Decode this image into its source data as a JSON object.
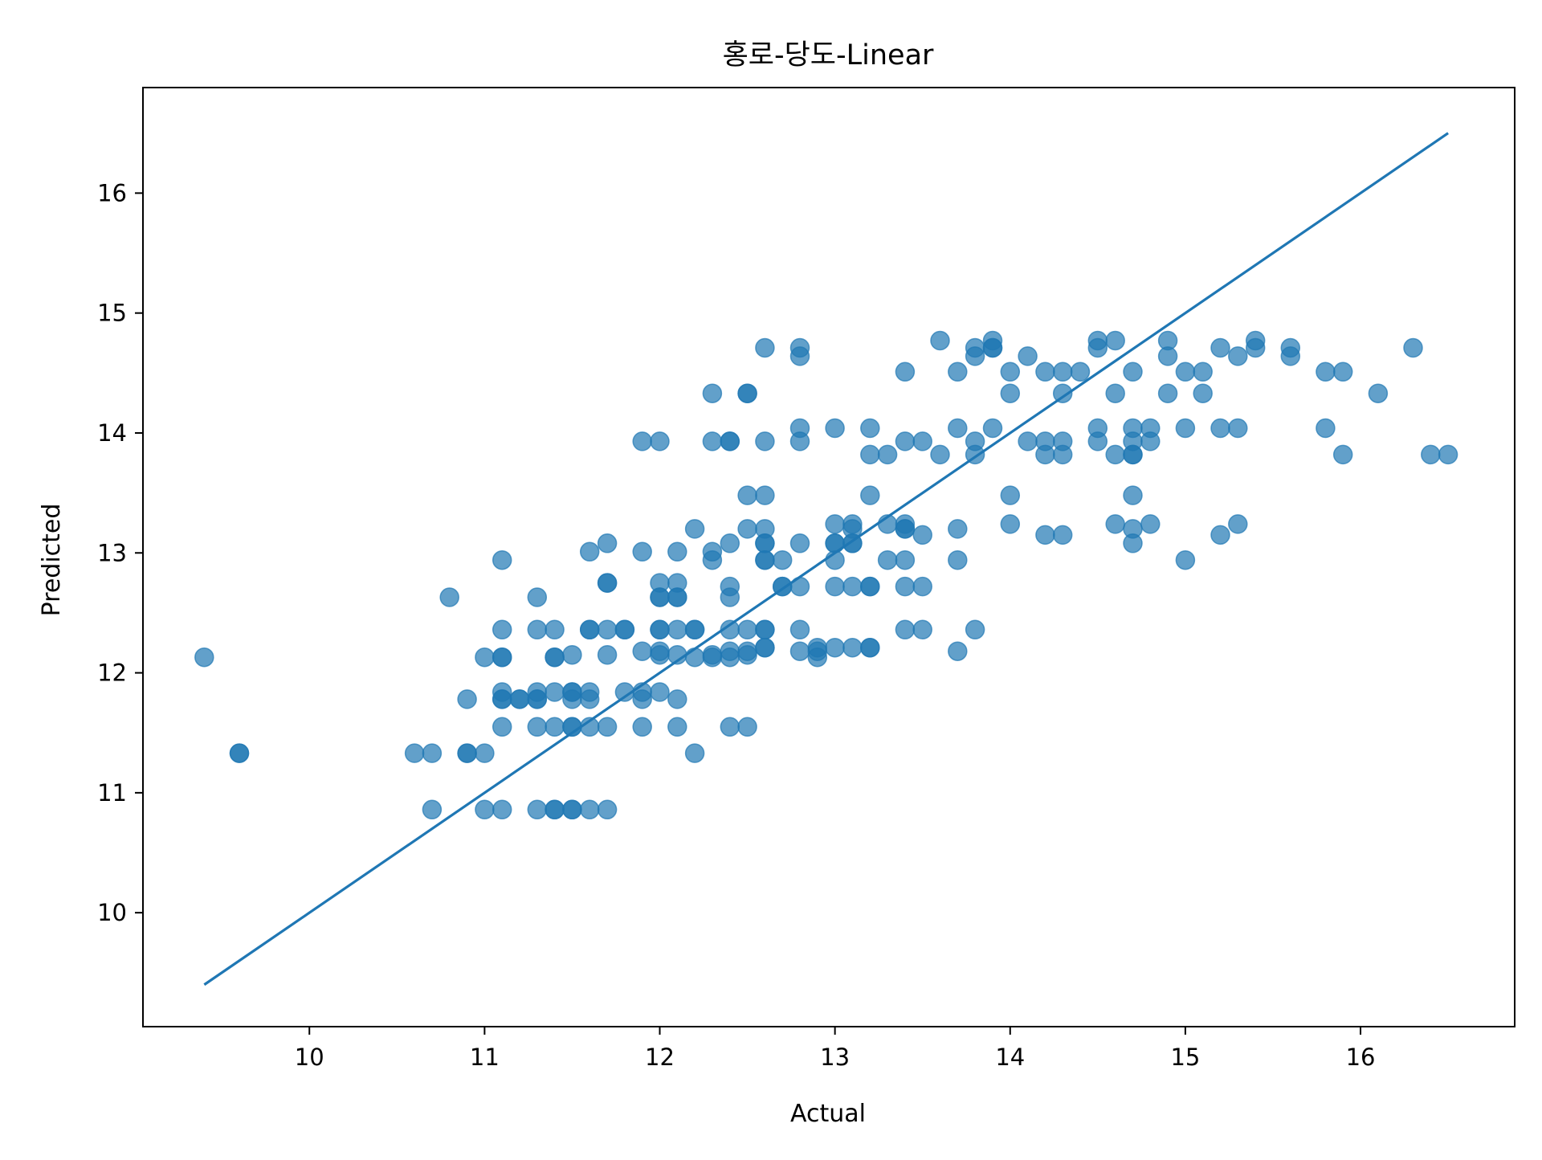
{
  "chart_data": {
    "type": "scatter",
    "title": "홍로-당도-Linear",
    "xlabel": "Actual",
    "ylabel": "Predicted",
    "xlim": [
      9.05,
      16.88
    ],
    "ylim": [
      9.05,
      16.88
    ],
    "xticks": [
      10,
      11,
      12,
      13,
      14,
      15,
      16
    ],
    "yticks": [
      10,
      11,
      12,
      13,
      14,
      15,
      16
    ],
    "xtick_labels": [
      "10",
      "11",
      "12",
      "13",
      "14",
      "15",
      "16"
    ],
    "ytick_labels": [
      "10",
      "11",
      "12",
      "13",
      "14",
      "15",
      "16"
    ],
    "grid": false,
    "point_color": "#1f77b4",
    "point_alpha": 0.7,
    "line_color": "#1f77b4",
    "reference_line": {
      "x": [
        9.4,
        16.5
      ],
      "y": [
        9.4,
        16.5
      ]
    },
    "points": [
      [
        9.4,
        12.13
      ],
      [
        9.6,
        11.33
      ],
      [
        9.6,
        11.33
      ],
      [
        10.6,
        11.33
      ],
      [
        10.7,
        11.33
      ],
      [
        10.7,
        10.86
      ],
      [
        10.8,
        12.63
      ],
      [
        10.9,
        11.78
      ],
      [
        10.9,
        11.33
      ],
      [
        10.9,
        11.33
      ],
      [
        11.0,
        12.13
      ],
      [
        11.0,
        11.33
      ],
      [
        11.0,
        10.86
      ],
      [
        11.1,
        12.94
      ],
      [
        11.1,
        12.36
      ],
      [
        11.1,
        12.13
      ],
      [
        11.1,
        12.13
      ],
      [
        11.1,
        11.84
      ],
      [
        11.1,
        11.78
      ],
      [
        11.1,
        11.78
      ],
      [
        11.1,
        11.55
      ],
      [
        11.1,
        10.86
      ],
      [
        11.2,
        11.78
      ],
      [
        11.2,
        11.78
      ],
      [
        11.3,
        12.63
      ],
      [
        11.3,
        12.36
      ],
      [
        11.3,
        11.84
      ],
      [
        11.3,
        11.78
      ],
      [
        11.3,
        11.78
      ],
      [
        11.3,
        11.55
      ],
      [
        11.3,
        10.86
      ],
      [
        11.4,
        12.36
      ],
      [
        11.4,
        12.13
      ],
      [
        11.4,
        12.13
      ],
      [
        11.4,
        11.84
      ],
      [
        11.4,
        11.55
      ],
      [
        11.4,
        10.86
      ],
      [
        11.4,
        10.86
      ],
      [
        11.5,
        12.15
      ],
      [
        11.5,
        11.84
      ],
      [
        11.5,
        11.84
      ],
      [
        11.5,
        11.78
      ],
      [
        11.5,
        11.55
      ],
      [
        11.5,
        11.55
      ],
      [
        11.5,
        10.86
      ],
      [
        11.5,
        10.86
      ],
      [
        11.6,
        13.01
      ],
      [
        11.6,
        12.36
      ],
      [
        11.6,
        12.36
      ],
      [
        11.6,
        11.84
      ],
      [
        11.6,
        11.78
      ],
      [
        11.6,
        11.55
      ],
      [
        11.6,
        10.86
      ],
      [
        11.7,
        13.08
      ],
      [
        11.7,
        12.75
      ],
      [
        11.7,
        12.75
      ],
      [
        11.7,
        12.36
      ],
      [
        11.7,
        12.15
      ],
      [
        11.7,
        11.55
      ],
      [
        11.7,
        10.86
      ],
      [
        11.8,
        12.36
      ],
      [
        11.8,
        12.36
      ],
      [
        11.8,
        11.84
      ],
      [
        11.9,
        13.93
      ],
      [
        11.9,
        13.01
      ],
      [
        11.9,
        12.18
      ],
      [
        11.9,
        11.84
      ],
      [
        11.9,
        11.78
      ],
      [
        11.9,
        11.55
      ],
      [
        12.0,
        13.93
      ],
      [
        12.0,
        12.75
      ],
      [
        12.0,
        12.63
      ],
      [
        12.0,
        12.63
      ],
      [
        12.0,
        12.36
      ],
      [
        12.0,
        12.36
      ],
      [
        12.0,
        12.18
      ],
      [
        12.0,
        12.15
      ],
      [
        12.0,
        11.84
      ],
      [
        12.1,
        13.01
      ],
      [
        12.1,
        12.75
      ],
      [
        12.1,
        12.63
      ],
      [
        12.1,
        12.63
      ],
      [
        12.1,
        12.36
      ],
      [
        12.1,
        12.15
      ],
      [
        12.1,
        11.78
      ],
      [
        12.1,
        11.55
      ],
      [
        12.2,
        13.2
      ],
      [
        12.2,
        12.36
      ],
      [
        12.2,
        12.36
      ],
      [
        12.2,
        12.13
      ],
      [
        12.2,
        11.33
      ],
      [
        12.3,
        14.33
      ],
      [
        12.3,
        13.93
      ],
      [
        12.3,
        13.01
      ],
      [
        12.3,
        12.94
      ],
      [
        12.3,
        12.15
      ],
      [
        12.3,
        12.13
      ],
      [
        12.4,
        13.93
      ],
      [
        12.4,
        13.93
      ],
      [
        12.4,
        13.08
      ],
      [
        12.4,
        12.72
      ],
      [
        12.4,
        12.63
      ],
      [
        12.4,
        12.36
      ],
      [
        12.4,
        12.18
      ],
      [
        12.4,
        12.13
      ],
      [
        12.4,
        11.55
      ],
      [
        12.5,
        14.33
      ],
      [
        12.5,
        14.33
      ],
      [
        12.5,
        13.48
      ],
      [
        12.5,
        13.2
      ],
      [
        12.5,
        12.36
      ],
      [
        12.5,
        12.18
      ],
      [
        12.5,
        12.15
      ],
      [
        12.5,
        11.55
      ],
      [
        12.6,
        14.71
      ],
      [
        12.6,
        13.93
      ],
      [
        12.6,
        13.48
      ],
      [
        12.6,
        13.2
      ],
      [
        12.6,
        13.08
      ],
      [
        12.6,
        13.08
      ],
      [
        12.6,
        12.94
      ],
      [
        12.6,
        12.94
      ],
      [
        12.6,
        12.36
      ],
      [
        12.6,
        12.36
      ],
      [
        12.6,
        12.21
      ],
      [
        12.6,
        12.21
      ],
      [
        12.7,
        12.94
      ],
      [
        12.7,
        12.72
      ],
      [
        12.7,
        12.72
      ],
      [
        12.8,
        14.71
      ],
      [
        12.8,
        14.64
      ],
      [
        12.8,
        14.04
      ],
      [
        12.8,
        13.93
      ],
      [
        12.8,
        13.08
      ],
      [
        12.8,
        12.72
      ],
      [
        12.8,
        12.36
      ],
      [
        12.8,
        12.18
      ],
      [
        12.9,
        12.21
      ],
      [
        12.9,
        12.18
      ],
      [
        12.9,
        12.13
      ],
      [
        13.0,
        14.04
      ],
      [
        13.0,
        13.24
      ],
      [
        13.0,
        13.08
      ],
      [
        13.0,
        13.08
      ],
      [
        13.0,
        12.94
      ],
      [
        13.0,
        12.72
      ],
      [
        13.0,
        12.21
      ],
      [
        13.1,
        13.24
      ],
      [
        13.1,
        13.2
      ],
      [
        13.1,
        13.08
      ],
      [
        13.1,
        13.08
      ],
      [
        13.1,
        12.72
      ],
      [
        13.1,
        12.21
      ],
      [
        13.2,
        14.04
      ],
      [
        13.2,
        13.82
      ],
      [
        13.2,
        13.48
      ],
      [
        13.2,
        12.72
      ],
      [
        13.2,
        12.72
      ],
      [
        13.2,
        12.21
      ],
      [
        13.2,
        12.21
      ],
      [
        13.3,
        13.82
      ],
      [
        13.3,
        13.24
      ],
      [
        13.3,
        12.94
      ],
      [
        13.4,
        14.51
      ],
      [
        13.4,
        13.93
      ],
      [
        13.4,
        13.24
      ],
      [
        13.4,
        13.2
      ],
      [
        13.4,
        13.2
      ],
      [
        13.4,
        12.94
      ],
      [
        13.4,
        12.72
      ],
      [
        13.4,
        12.36
      ],
      [
        13.5,
        13.93
      ],
      [
        13.5,
        13.15
      ],
      [
        13.5,
        12.72
      ],
      [
        13.5,
        12.36
      ],
      [
        13.6,
        14.77
      ],
      [
        13.6,
        13.82
      ],
      [
        13.7,
        14.51
      ],
      [
        13.7,
        14.04
      ],
      [
        13.7,
        13.2
      ],
      [
        13.7,
        12.94
      ],
      [
        13.7,
        12.18
      ],
      [
        13.8,
        14.71
      ],
      [
        13.8,
        14.64
      ],
      [
        13.8,
        13.93
      ],
      [
        13.8,
        13.82
      ],
      [
        13.8,
        12.36
      ],
      [
        13.9,
        14.77
      ],
      [
        13.9,
        14.71
      ],
      [
        13.9,
        14.71
      ],
      [
        13.9,
        14.04
      ],
      [
        14.0,
        14.51
      ],
      [
        14.0,
        14.33
      ],
      [
        14.0,
        13.48
      ],
      [
        14.0,
        13.24
      ],
      [
        14.1,
        14.64
      ],
      [
        14.1,
        13.93
      ],
      [
        14.2,
        14.51
      ],
      [
        14.2,
        13.93
      ],
      [
        14.2,
        13.82
      ],
      [
        14.2,
        13.15
      ],
      [
        14.3,
        14.51
      ],
      [
        14.3,
        14.33
      ],
      [
        14.3,
        13.93
      ],
      [
        14.3,
        13.82
      ],
      [
        14.3,
        13.15
      ],
      [
        14.4,
        14.51
      ],
      [
        14.5,
        14.77
      ],
      [
        14.5,
        14.71
      ],
      [
        14.5,
        14.04
      ],
      [
        14.5,
        13.93
      ],
      [
        14.6,
        14.77
      ],
      [
        14.6,
        14.33
      ],
      [
        14.6,
        13.82
      ],
      [
        14.6,
        13.24
      ],
      [
        14.7,
        14.51
      ],
      [
        14.7,
        14.04
      ],
      [
        14.7,
        13.93
      ],
      [
        14.7,
        13.82
      ],
      [
        14.7,
        13.82
      ],
      [
        14.7,
        13.48
      ],
      [
        14.7,
        13.2
      ],
      [
        14.7,
        13.08
      ],
      [
        14.8,
        14.04
      ],
      [
        14.8,
        13.93
      ],
      [
        14.8,
        13.24
      ],
      [
        14.9,
        14.77
      ],
      [
        14.9,
        14.64
      ],
      [
        14.9,
        14.33
      ],
      [
        15.0,
        14.51
      ],
      [
        15.0,
        14.04
      ],
      [
        15.0,
        12.94
      ],
      [
        15.1,
        14.51
      ],
      [
        15.1,
        14.33
      ],
      [
        15.2,
        14.71
      ],
      [
        15.2,
        14.04
      ],
      [
        15.2,
        13.15
      ],
      [
        15.3,
        14.64
      ],
      [
        15.3,
        14.04
      ],
      [
        15.3,
        13.24
      ],
      [
        15.4,
        14.77
      ],
      [
        15.4,
        14.71
      ],
      [
        15.6,
        14.71
      ],
      [
        15.6,
        14.64
      ],
      [
        15.8,
        14.51
      ],
      [
        15.8,
        14.04
      ],
      [
        15.9,
        14.51
      ],
      [
        15.9,
        13.82
      ],
      [
        16.1,
        14.33
      ],
      [
        16.3,
        14.71
      ],
      [
        16.4,
        13.82
      ],
      [
        16.5,
        13.82
      ]
    ]
  }
}
